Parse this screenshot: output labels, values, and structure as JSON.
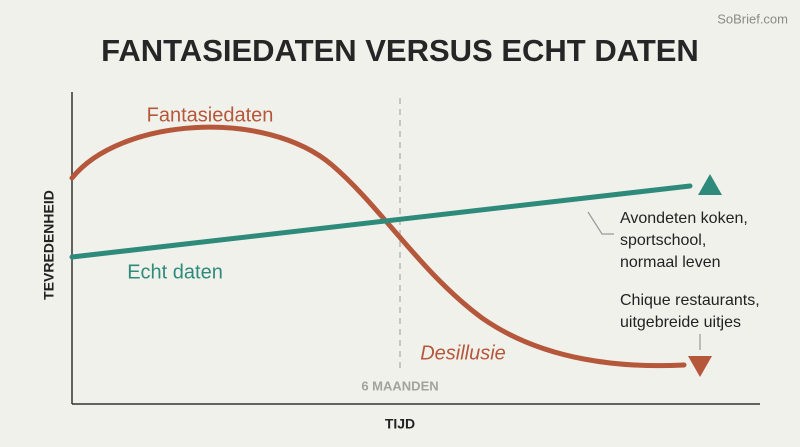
{
  "watermark": "SoBrief.com",
  "title": "FANTASIEDATEN VERSUS ECHT DATEN",
  "y_axis_label": "TEVREDENHEID",
  "x_axis_label": "TIJD",
  "time_marker": "6 MAANDEN",
  "curves": [
    {
      "label": "Fantasiedaten"
    },
    {
      "label": "Echt daten"
    }
  ],
  "phase_label": "Desillusie",
  "callouts": [
    {
      "lines": [
        "Avondeten koken,",
        "sportschool,",
        "normaal leven"
      ]
    },
    {
      "lines": [
        "Chique restaurants,",
        "uitgebreide uitjes"
      ]
    }
  ]
}
